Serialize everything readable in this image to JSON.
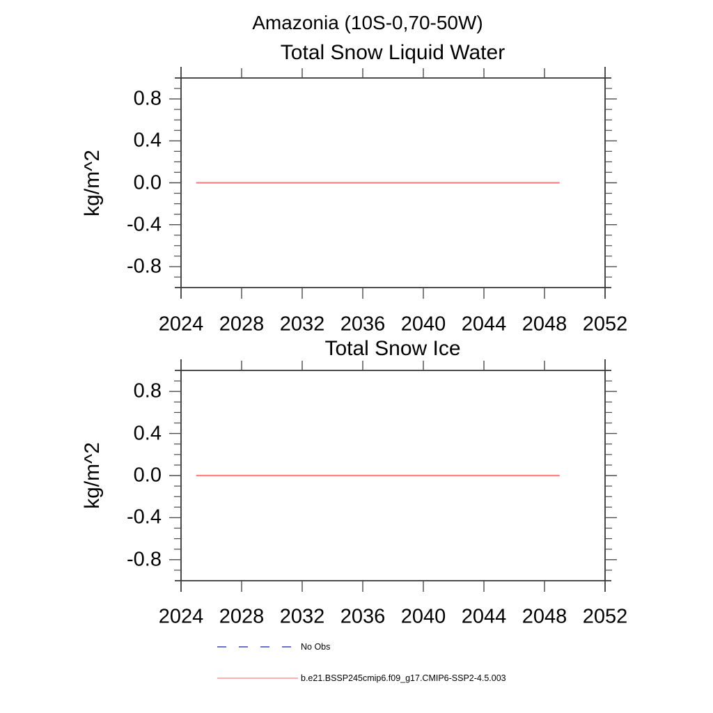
{
  "header": {
    "title": "Amazonia (10S-0,70-50W)"
  },
  "colors": {
    "model_line": "#ff8282",
    "no_obs_line": "#7070d2",
    "frame": "#333333",
    "tick": "#4a4a4a",
    "text": "#000000",
    "background": "#ffffff"
  },
  "legend": {
    "items": [
      {
        "label": "No Obs",
        "line_style": "dashed",
        "color": "#7070d2"
      },
      {
        "label": "b.e21.BSSP245cmip6.f09_g17.CMIP6-SSP2-4.5.003",
        "line_style": "solid",
        "color": "#ff8282"
      }
    ]
  },
  "chart_data": [
    {
      "type": "line",
      "title": "Total Snow Liquid Water",
      "xlabel": "",
      "ylabel": "kg/m^2",
      "xlim": [
        2024,
        2052
      ],
      "ylim": [
        -1.0,
        1.0
      ],
      "xticks": [
        2024,
        2028,
        2032,
        2036,
        2040,
        2044,
        2048,
        2052
      ],
      "xtick_labels": [
        "2024",
        "2028",
        "2032",
        "2036",
        "2040",
        "2044",
        "2048",
        "2052"
      ],
      "yticks": [
        -0.8,
        -0.4,
        0.0,
        0.4,
        0.8
      ],
      "ytick_labels": [
        "-0.8",
        "-0.4",
        "0.0",
        "0.4",
        "0.8"
      ],
      "y_minor_step": 0.1,
      "grid": false,
      "legend_position": "none",
      "series": [
        {
          "name": "b.e21.BSSP245cmip6.f09_g17.CMIP6-SSP2-4.5.003",
          "color": "#ff8282",
          "x": [
            2025,
            2049
          ],
          "y": [
            0.0,
            0.0
          ]
        }
      ]
    },
    {
      "type": "line",
      "title": "Total Snow Ice",
      "xlabel": "",
      "ylabel": "kg/m^2",
      "xlim": [
        2024,
        2052
      ],
      "ylim": [
        -1.0,
        1.0
      ],
      "xticks": [
        2024,
        2028,
        2032,
        2036,
        2040,
        2044,
        2048,
        2052
      ],
      "xtick_labels": [
        "2024",
        "2028",
        "2032",
        "2036",
        "2040",
        "2044",
        "2048",
        "2052"
      ],
      "yticks": [
        -0.8,
        -0.4,
        0.0,
        0.4,
        0.8
      ],
      "ytick_labels": [
        "-0.8",
        "-0.4",
        "0.0",
        "0.4",
        "0.8"
      ],
      "y_minor_step": 0.1,
      "grid": false,
      "legend_position": "none",
      "series": [
        {
          "name": "b.e21.BSSP245cmip6.f09_g17.CMIP6-SSP2-4.5.003",
          "color": "#ff8282",
          "x": [
            2025,
            2049
          ],
          "y": [
            0.0,
            0.0
          ]
        }
      ]
    }
  ]
}
